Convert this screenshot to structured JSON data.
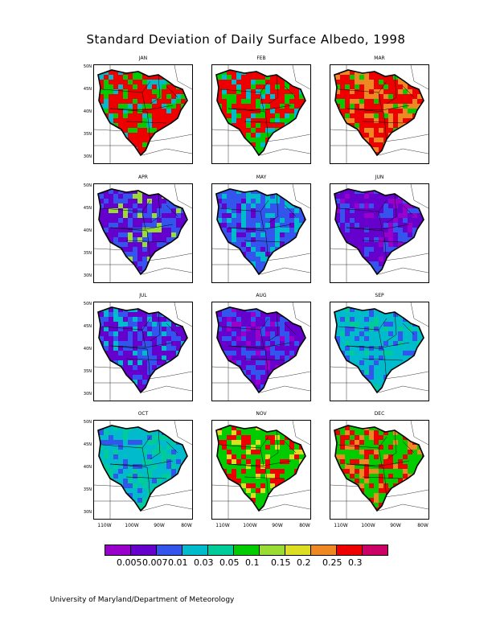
{
  "title": "Standard Deviation of Daily Surface Albedo, 1998",
  "footer": "University of Maryland/Department of Meteorology",
  "months": [
    "JAN",
    "FEB",
    "MAR",
    "APR",
    "MAY",
    "JUN",
    "JUL",
    "AUG",
    "SEP",
    "OCT",
    "NOV",
    "DEC"
  ],
  "lat_labels": [
    "50N",
    "45N",
    "40N",
    "35N",
    "30N"
  ],
  "lon_labels_cols": [
    [
      "110W",
      "100W",
      "90W",
      "80W"
    ],
    [
      "110W",
      "100W",
      "90W",
      "80W"
    ],
    [
      "110W",
      "100W",
      "90W",
      "80W"
    ]
  ],
  "colorbar": {
    "colors": [
      "#9900cc",
      "#6600cc",
      "#3355ee",
      "#00bbcc",
      "#00cc99",
      "#00cc00",
      "#99dd33",
      "#dddd22",
      "#ee8822",
      "#ee0000",
      "#cc0066"
    ],
    "labels": [
      "0.005",
      "0.007",
      "0.01",
      "0.03",
      "0.05",
      "0.1",
      "0.15",
      "0.2",
      "0.25",
      "0.3"
    ]
  },
  "month_dominant": {
    "JAN": [
      "#ee0000",
      "#00cc00",
      "#00bbcc"
    ],
    "FEB": [
      "#ee0000",
      "#00cc00",
      "#00bbcc"
    ],
    "MAR": [
      "#ee0000",
      "#ee8822",
      "#00cc00"
    ],
    "APR": [
      "#6600cc",
      "#3355ee",
      "#99dd33"
    ],
    "MAY": [
      "#3355ee",
      "#00bbcc",
      "#6600cc"
    ],
    "JUN": [
      "#6600cc",
      "#3355ee",
      "#9900cc"
    ],
    "JUL": [
      "#6600cc",
      "#3355ee",
      "#00bbcc"
    ],
    "AUG": [
      "#6600cc",
      "#3355ee",
      "#9900cc"
    ],
    "SEP": [
      "#00bbcc",
      "#3355ee",
      "#00cc99"
    ],
    "OCT": [
      "#00bbcc",
      "#00cc99",
      "#3355ee"
    ],
    "NOV": [
      "#00cc00",
      "#ee0000",
      "#dddd22"
    ],
    "DEC": [
      "#00cc00",
      "#ee0000",
      "#ee8822"
    ]
  }
}
